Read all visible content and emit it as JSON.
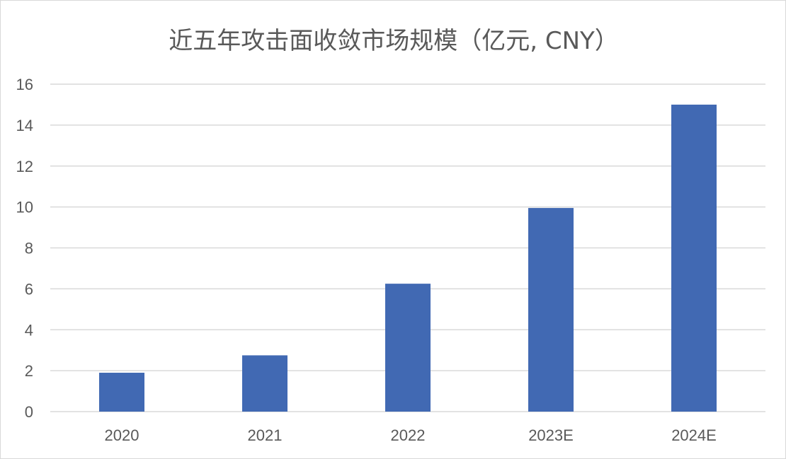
{
  "chart_data": {
    "type": "bar",
    "title": "近五年攻击面收敛市场规模（亿元, CNY）",
    "categories": [
      "2020",
      "2021",
      "2022",
      "2023E",
      "2024E"
    ],
    "series": [
      {
        "values": [
          1.9,
          2.75,
          6.25,
          9.95,
          15.0
        ]
      }
    ],
    "xlabel": "",
    "ylabel": "",
    "ylim": [
      0,
      16
    ],
    "yticks": [
      0,
      2,
      4,
      6,
      8,
      10,
      12,
      14,
      16
    ],
    "grid": "horizontal",
    "legend": "none",
    "colors": {
      "bar": "#4169b3",
      "grid": "#d9d9d9",
      "text": "#595959"
    }
  }
}
